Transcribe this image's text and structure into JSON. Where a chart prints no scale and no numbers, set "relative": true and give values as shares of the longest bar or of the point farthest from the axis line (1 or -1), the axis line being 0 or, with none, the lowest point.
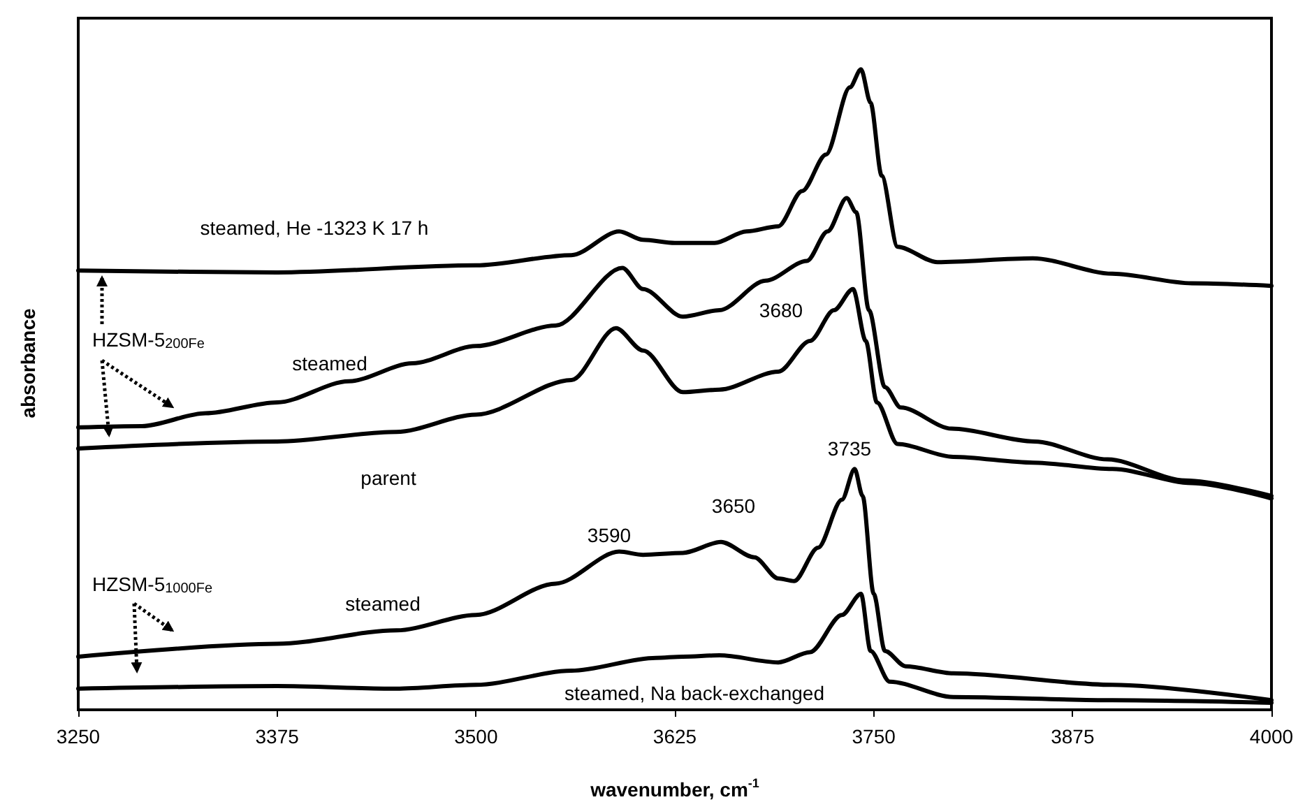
{
  "chart_data": {
    "type": "line",
    "relative": true,
    "xlabel": "wavenumber, cm$^{-1}$",
    "ylabel": "absorbance",
    "xlim": [
      3250,
      4000
    ],
    "xticks": [
      3250,
      3375,
      3500,
      3625,
      3750,
      3875,
      4000
    ],
    "grid": false,
    "marker": "none",
    "line_style": "solid",
    "series": [
      {
        "color": "#000000",
        "x": [
          3250,
          3375,
          3500,
          3560,
          3590,
          3605,
          3625,
          3650,
          3670,
          3690,
          3705,
          3720,
          3735,
          3742,
          3748,
          3755,
          3765,
          3790,
          3850,
          3900,
          3950,
          4000
        ],
        "values": [
          0.686,
          0.683,
          0.694,
          0.71,
          0.747,
          0.734,
          0.729,
          0.729,
          0.747,
          0.755,
          0.81,
          0.867,
          0.972,
          1.0,
          0.948,
          0.834,
          0.723,
          0.699,
          0.705,
          0.681,
          0.666,
          0.662
        ]
      },
      {
        "color": "#000000",
        "x": [
          3250,
          3290,
          3330,
          3375,
          3420,
          3460,
          3500,
          3550,
          3592,
          3605,
          3630,
          3653,
          3682,
          3708,
          3721,
          3733,
          3739,
          3747,
          3757,
          3767,
          3799,
          3851,
          3897,
          3946,
          4000
        ],
        "values": [
          0.441,
          0.443,
          0.463,
          0.48,
          0.513,
          0.541,
          0.568,
          0.6,
          0.69,
          0.657,
          0.614,
          0.624,
          0.67,
          0.701,
          0.747,
          0.799,
          0.777,
          0.624,
          0.504,
          0.472,
          0.439,
          0.419,
          0.391,
          0.358,
          0.334
        ]
      },
      {
        "color": "#000000",
        "x": [
          3250,
          3375,
          3450,
          3500,
          3560,
          3588,
          3605,
          3630,
          3653,
          3690,
          3710,
          3725,
          3737,
          3745,
          3752,
          3765,
          3800,
          3850,
          3900,
          3950,
          4000
        ],
        "values": [
          0.408,
          0.419,
          0.434,
          0.461,
          0.515,
          0.596,
          0.561,
          0.496,
          0.5,
          0.528,
          0.576,
          0.624,
          0.657,
          0.576,
          0.48,
          0.415,
          0.395,
          0.386,
          0.376,
          0.354,
          0.33
        ]
      },
      {
        "color": "#000000",
        "x": [
          3250,
          3375,
          3450,
          3500,
          3550,
          3590,
          3605,
          3630,
          3654,
          3675,
          3690,
          3700,
          3715,
          3730,
          3738,
          3743,
          3750,
          3757,
          3770,
          3800,
          3900,
          4000
        ],
        "values": [
          0.083,
          0.103,
          0.124,
          0.148,
          0.197,
          0.247,
          0.242,
          0.245,
          0.262,
          0.238,
          0.205,
          0.201,
          0.253,
          0.328,
          0.376,
          0.334,
          0.181,
          0.092,
          0.068,
          0.057,
          0.039,
          0.015
        ]
      },
      {
        "color": "#000000",
        "x": [
          3250,
          3375,
          3450,
          3500,
          3560,
          3613,
          3630,
          3653,
          3690,
          3710,
          3730,
          3742,
          3748,
          3760,
          3800,
          3900,
          4000
        ],
        "values": [
          0.033,
          0.037,
          0.033,
          0.039,
          0.061,
          0.081,
          0.083,
          0.085,
          0.074,
          0.09,
          0.148,
          0.181,
          0.092,
          0.044,
          0.02,
          0.015,
          0.011
        ]
      }
    ],
    "annotations": [
      "steamed, He -1323 K 17 h",
      "HZSM-5$_{200Fe}$",
      "steamed",
      "parent",
      "HZSM-5$_{1000Fe}$",
      "steamed",
      "steamed, Na back-exchanged",
      "3590",
      "3650",
      "3735",
      "3680"
    ]
  }
}
